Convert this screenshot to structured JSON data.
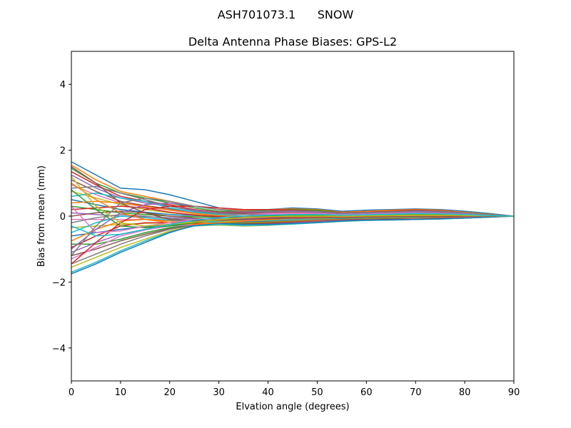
{
  "suptitle": "ASH701073.1      SNOW",
  "chart_data": {
    "type": "line",
    "title": "Delta Antenna Phase Biases: GPS-L2",
    "xlabel": "Elvation angle (degrees)",
    "ylabel": "Bias from mean (mm)",
    "xlim": [
      0,
      90
    ],
    "ylim": [
      -5,
      5
    ],
    "xticks": [
      0,
      10,
      20,
      30,
      40,
      50,
      60,
      70,
      80,
      90
    ],
    "yticks": [
      -4,
      -2,
      0,
      2,
      4
    ],
    "ytick_labels": [
      "−4",
      "−2",
      "0",
      "2",
      "4"
    ],
    "grid": false,
    "x": [
      0,
      5,
      10,
      15,
      20,
      25,
      30,
      35,
      40,
      45,
      50,
      55,
      60,
      65,
      70,
      75,
      80,
      85,
      90
    ],
    "colors": [
      "#1f77b4",
      "#ff7f0e",
      "#2ca02c",
      "#d62728",
      "#9467bd",
      "#8c564b",
      "#e377c2",
      "#7f7f7f",
      "#bcbd22",
      "#17becf"
    ],
    "series": [
      {
        "values": [
          1.65,
          1.25,
          0.85,
          0.8,
          0.65,
          0.45,
          0.25,
          0.2,
          0.2,
          0.25,
          0.22,
          0.15,
          0.18,
          0.2,
          0.22,
          0.2,
          0.15,
          0.08,
          0
        ]
      },
      {
        "values": [
          1.55,
          1.1,
          0.75,
          0.6,
          0.45,
          0.3,
          0.2,
          0.18,
          0.2,
          0.22,
          0.2,
          0.12,
          0.15,
          0.18,
          0.2,
          0.18,
          0.12,
          0.06,
          0
        ]
      },
      {
        "values": [
          1.45,
          1.0,
          0.7,
          0.55,
          0.4,
          0.25,
          0.15,
          0.15,
          0.18,
          0.2,
          0.18,
          0.1,
          0.12,
          0.15,
          0.18,
          0.16,
          0.1,
          0.05,
          0
        ]
      },
      {
        "values": [
          1.35,
          0.95,
          0.6,
          0.45,
          0.35,
          0.2,
          0.12,
          0.12,
          0.15,
          0.18,
          0.15,
          0.08,
          0.1,
          0.12,
          0.15,
          0.14,
          0.09,
          0.04,
          0
        ]
      },
      {
        "values": [
          1.25,
          0.85,
          0.55,
          0.4,
          0.3,
          0.18,
          0.1,
          0.1,
          0.12,
          0.15,
          0.12,
          0.06,
          0.08,
          0.1,
          0.12,
          0.12,
          0.08,
          0.04,
          0
        ]
      },
      {
        "values": [
          1.1,
          0.75,
          0.45,
          0.32,
          0.22,
          0.12,
          0.08,
          0.08,
          0.1,
          0.12,
          0.1,
          0.05,
          0.06,
          0.08,
          0.1,
          0.1,
          0.06,
          0.03,
          0
        ]
      },
      {
        "values": [
          0.95,
          0.65,
          0.4,
          0.28,
          0.18,
          0.1,
          0.05,
          0.05,
          0.08,
          0.1,
          0.08,
          0.04,
          0.05,
          0.06,
          0.08,
          0.08,
          0.05,
          0.02,
          0
        ]
      },
      {
        "values": [
          0.85,
          0.9,
          0.7,
          0.5,
          0.3,
          0.15,
          0.08,
          0.05,
          0.05,
          0.06,
          0.05,
          0.03,
          0.04,
          0.05,
          0.06,
          0.06,
          0.04,
          0.02,
          0
        ]
      },
      {
        "values": [
          0.75,
          0.55,
          0.35,
          0.2,
          0.1,
          0.05,
          0.02,
          0.0,
          0.02,
          0.04,
          0.03,
          0.02,
          0.03,
          0.04,
          0.05,
          0.05,
          0.03,
          0.01,
          0
        ]
      },
      {
        "values": [
          0.6,
          0.7,
          0.55,
          0.45,
          0.25,
          0.12,
          0.05,
          0.0,
          0.0,
          0.02,
          0.02,
          0.01,
          0.02,
          0.03,
          0.04,
          0.04,
          0.02,
          0.01,
          0
        ]
      },
      {
        "values": [
          0.5,
          0.35,
          0.2,
          0.12,
          0.05,
          0.02,
          0.0,
          -0.02,
          0.0,
          0.02,
          0.01,
          0.0,
          0.01,
          0.02,
          0.03,
          0.03,
          0.02,
          0.01,
          0
        ]
      },
      {
        "values": [
          0.4,
          0.45,
          0.4,
          0.3,
          0.18,
          0.08,
          0.02,
          -0.02,
          -0.02,
          0.0,
          0.0,
          0.0,
          0.0,
          0.01,
          0.02,
          0.02,
          0.01,
          0.0,
          0
        ]
      },
      {
        "values": [
          0.3,
          0.2,
          0.1,
          0.05,
          0.0,
          -0.02,
          -0.04,
          -0.05,
          -0.04,
          -0.02,
          -0.02,
          -0.01,
          0.0,
          0.0,
          0.01,
          0.01,
          0.01,
          0.0,
          0
        ]
      },
      {
        "values": [
          0.2,
          0.25,
          0.3,
          0.25,
          0.12,
          0.03,
          -0.02,
          -0.05,
          -0.05,
          -0.04,
          -0.03,
          -0.02,
          -0.01,
          0.0,
          0.0,
          0.0,
          0.0,
          0.0,
          0
        ]
      },
      {
        "values": [
          0.1,
          0.05,
          0.0,
          -0.02,
          -0.05,
          -0.08,
          -0.08,
          -0.08,
          -0.07,
          -0.05,
          -0.04,
          -0.03,
          -0.02,
          -0.01,
          0.0,
          0.0,
          0.0,
          0.0,
          0
        ]
      },
      {
        "values": [
          0.0,
          0.1,
          0.15,
          0.1,
          0.0,
          -0.06,
          -0.1,
          -0.1,
          -0.09,
          -0.08,
          -0.06,
          -0.04,
          -0.03,
          -0.02,
          -0.01,
          -0.01,
          0.0,
          0.0,
          0
        ]
      },
      {
        "values": [
          -0.1,
          -0.1,
          -0.1,
          -0.1,
          -0.12,
          -0.12,
          -0.12,
          -0.12,
          -0.1,
          -0.08,
          -0.06,
          -0.05,
          -0.04,
          -0.03,
          -0.02,
          -0.02,
          -0.01,
          0.0,
          0
        ]
      },
      {
        "values": [
          -0.2,
          -0.05,
          0.05,
          0.0,
          -0.08,
          -0.12,
          -0.14,
          -0.14,
          -0.12,
          -0.1,
          -0.08,
          -0.06,
          -0.05,
          -0.04,
          -0.03,
          -0.02,
          -0.01,
          -0.01,
          0
        ]
      },
      {
        "values": [
          -0.35,
          -0.3,
          -0.25,
          -0.22,
          -0.2,
          -0.18,
          -0.16,
          -0.15,
          -0.13,
          -0.11,
          -0.09,
          -0.07,
          -0.06,
          -0.05,
          -0.04,
          -0.03,
          -0.02,
          -0.01,
          0
        ]
      },
      {
        "values": [
          -0.5,
          -0.2,
          0.0,
          -0.05,
          -0.12,
          -0.16,
          -0.18,
          -0.17,
          -0.15,
          -0.12,
          -0.1,
          -0.08,
          -0.07,
          -0.06,
          -0.05,
          -0.04,
          -0.03,
          -0.01,
          0
        ]
      },
      {
        "values": [
          -0.6,
          -0.5,
          -0.4,
          -0.32,
          -0.26,
          -0.22,
          -0.2,
          -0.18,
          -0.16,
          -0.14,
          -0.11,
          -0.09,
          -0.08,
          -0.07,
          -0.06,
          -0.05,
          -0.03,
          -0.01,
          0
        ]
      },
      {
        "values": [
          -0.75,
          -0.4,
          -0.15,
          -0.1,
          -0.15,
          -0.2,
          -0.22,
          -0.2,
          -0.18,
          -0.15,
          -0.12,
          -0.1,
          -0.08,
          -0.07,
          -0.06,
          -0.05,
          -0.03,
          -0.01,
          0
        ]
      },
      {
        "values": [
          -0.85,
          -0.85,
          -0.7,
          -0.5,
          -0.35,
          -0.25,
          -0.22,
          -0.22,
          -0.2,
          -0.17,
          -0.14,
          -0.11,
          -0.09,
          -0.08,
          -0.07,
          -0.06,
          -0.04,
          -0.02,
          0
        ]
      },
      {
        "values": [
          -0.95,
          -0.6,
          -0.3,
          -0.2,
          -0.2,
          -0.22,
          -0.24,
          -0.24,
          -0.22,
          -0.18,
          -0.15,
          -0.12,
          -0.1,
          -0.09,
          -0.08,
          -0.06,
          -0.04,
          -0.02,
          0
        ]
      },
      {
        "values": [
          -1.1,
          -0.8,
          -0.55,
          -0.4,
          -0.3,
          -0.25,
          -0.25,
          -0.26,
          -0.24,
          -0.2,
          -0.16,
          -0.13,
          -0.11,
          -0.1,
          -0.08,
          -0.07,
          -0.05,
          -0.02,
          0
        ]
      },
      {
        "values": [
          -1.2,
          -1.0,
          -0.75,
          -0.55,
          -0.38,
          -0.28,
          -0.26,
          -0.27,
          -0.25,
          -0.21,
          -0.17,
          -0.14,
          -0.12,
          -0.1,
          -0.09,
          -0.07,
          -0.05,
          -0.02,
          0
        ]
      },
      {
        "values": [
          -1.3,
          -0.95,
          -0.6,
          -0.42,
          -0.3,
          -0.25,
          -0.26,
          -0.28,
          -0.26,
          -0.22,
          -0.18,
          -0.15,
          -0.12,
          -0.11,
          -0.09,
          -0.08,
          -0.05,
          -0.02,
          0
        ]
      },
      {
        "values": [
          -1.45,
          -1.15,
          -0.85,
          -0.6,
          -0.4,
          -0.28,
          -0.27,
          -0.29,
          -0.27,
          -0.23,
          -0.19,
          -0.15,
          -0.13,
          -0.11,
          -0.1,
          -0.08,
          -0.06,
          -0.03,
          0
        ]
      },
      {
        "values": [
          -1.55,
          -1.25,
          -0.95,
          -0.7,
          -0.45,
          -0.3,
          -0.27,
          -0.3,
          -0.28,
          -0.24,
          -0.2,
          -0.16,
          -0.13,
          -0.12,
          -0.1,
          -0.08,
          -0.06,
          -0.03,
          0
        ]
      },
      {
        "values": [
          -1.7,
          -1.4,
          -1.05,
          -0.75,
          -0.48,
          -0.3,
          -0.25,
          -0.28,
          -0.27,
          -0.24,
          -0.2,
          -0.16,
          -0.13,
          -0.12,
          -0.1,
          -0.09,
          -0.06,
          -0.03,
          0
        ]
      },
      {
        "values": [
          -1.75,
          -1.45,
          -1.1,
          -0.8,
          -0.5,
          -0.28,
          -0.22,
          -0.25,
          -0.25,
          -0.22,
          -0.19,
          -0.15,
          -0.12,
          -0.11,
          -0.1,
          -0.08,
          -0.06,
          -0.03,
          0
        ]
      },
      {
        "values": [
          1.0,
          0.5,
          0.1,
          -0.1,
          -0.2,
          -0.25,
          -0.2,
          -0.15,
          -0.1,
          -0.05,
          -0.04,
          -0.03,
          -0.02,
          -0.01,
          0.0,
          0.0,
          0.0,
          0.0,
          0
        ]
      },
      {
        "values": [
          0.8,
          0.2,
          -0.3,
          -0.35,
          -0.3,
          -0.2,
          -0.1,
          -0.05,
          0.0,
          0.02,
          0.02,
          0.01,
          0.02,
          0.03,
          0.04,
          0.04,
          0.02,
          0.01,
          0
        ]
      },
      {
        "values": [
          -1.45,
          -0.8,
          -0.2,
          0.2,
          0.3,
          0.3,
          0.25,
          0.2,
          0.2,
          0.18,
          0.15,
          0.1,
          0.12,
          0.15,
          0.18,
          0.16,
          0.1,
          0.05,
          0
        ]
      },
      {
        "values": [
          -1.0,
          -0.4,
          0.1,
          0.35,
          0.4,
          0.3,
          0.2,
          0.15,
          0.15,
          0.15,
          0.12,
          0.08,
          0.1,
          0.12,
          0.15,
          0.14,
          0.09,
          0.04,
          0
        ]
      },
      {
        "values": [
          1.5,
          1.0,
          0.4,
          0.1,
          -0.1,
          -0.15,
          -0.12,
          -0.1,
          -0.08,
          -0.06,
          -0.05,
          -0.04,
          -0.03,
          -0.02,
          -0.01,
          -0.01,
          0.0,
          0.0,
          0
        ]
      },
      {
        "values": [
          0.3,
          -0.5,
          -0.45,
          -0.3,
          -0.2,
          -0.1,
          -0.05,
          0.0,
          0.05,
          0.08,
          0.07,
          0.05,
          0.06,
          0.08,
          0.1,
          0.09,
          0.06,
          0.03,
          0
        ]
      },
      {
        "values": [
          -1.2,
          -0.3,
          0.4,
          0.55,
          0.45,
          0.3,
          0.2,
          0.15,
          0.15,
          0.16,
          0.14,
          0.09,
          0.11,
          0.13,
          0.16,
          0.15,
          0.1,
          0.05,
          0
        ]
      },
      {
        "values": [
          1.2,
          0.3,
          -0.2,
          -0.3,
          -0.25,
          -0.18,
          -0.1,
          -0.05,
          -0.02,
          0.0,
          0.0,
          0.0,
          0.01,
          0.02,
          0.03,
          0.03,
          0.02,
          0.01,
          0
        ]
      },
      {
        "values": [
          -0.3,
          -0.6,
          -0.55,
          -0.4,
          -0.25,
          -0.12,
          -0.05,
          0.0,
          0.03,
          0.05,
          0.05,
          0.03,
          0.04,
          0.06,
          0.08,
          0.07,
          0.05,
          0.02,
          0
        ]
      }
    ]
  }
}
